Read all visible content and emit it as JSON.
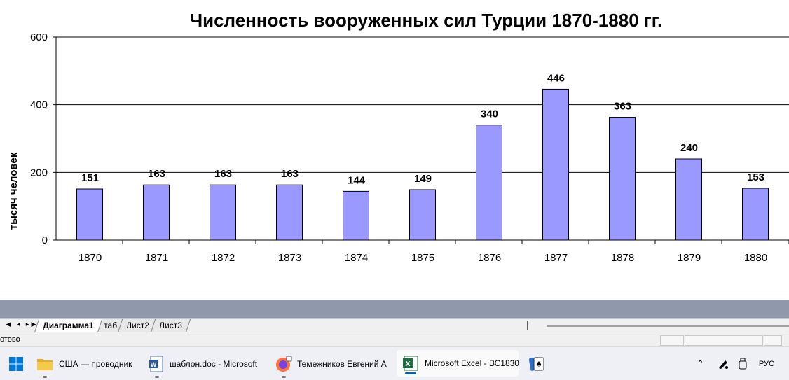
{
  "chart_data": {
    "type": "bar",
    "title": "Численность вооруженных сил Турции 1870-1880 гг.",
    "ylabel": "тысяч человек",
    "xlabel": "",
    "categories": [
      "1870",
      "1871",
      "1872",
      "1873",
      "1874",
      "1875",
      "1876",
      "1877",
      "1878",
      "1879",
      "1880"
    ],
    "values": [
      151,
      163,
      163,
      163,
      144,
      149,
      340,
      446,
      363,
      240,
      153
    ],
    "ylim": [
      0,
      600
    ],
    "yticks": [
      0,
      200,
      400,
      600
    ],
    "ytick_labels": [
      "0",
      "200",
      "400",
      "600"
    ],
    "grid": true,
    "legend": "none",
    "bar_color": "#9999ff"
  },
  "sheet_tabs": [
    {
      "label": "Диаграмма1",
      "active": true
    },
    {
      "label": "таб",
      "active": false
    },
    {
      "label": "Лист2",
      "active": false
    },
    {
      "label": "Лист3",
      "active": false
    }
  ],
  "status": {
    "text": "отово"
  },
  "taskbar": {
    "items": [
      {
        "label": "США — проводник",
        "icon": "folder-icon"
      },
      {
        "label": "шаблон.doc - Microsoft",
        "icon": "word-icon"
      },
      {
        "label": "Темежников Евгений А",
        "icon": "firefox-icon"
      },
      {
        "label": "Microsoft Excel - ВС1830",
        "icon": "excel-icon"
      },
      {
        "label": "",
        "icon": "solitaire-icon"
      }
    ],
    "tray": {
      "lang": "РУС"
    }
  }
}
